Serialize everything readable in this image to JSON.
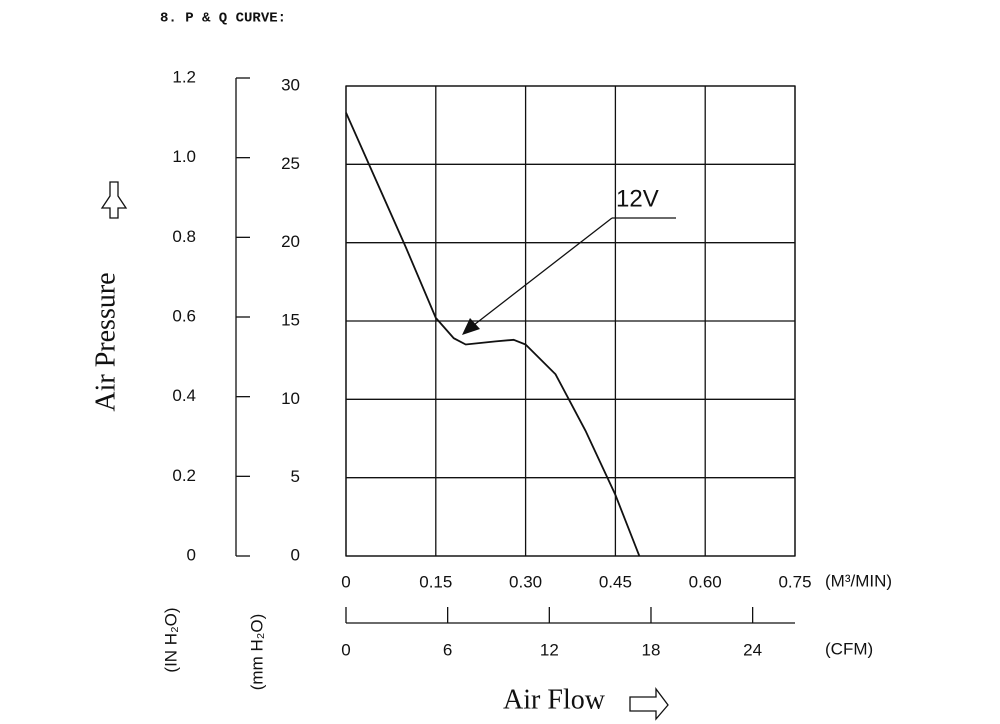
{
  "chart_data": {
    "type": "line",
    "title": "8. P & Q CURVE:",
    "y_label": "Air Pressure",
    "x_label": "Air Flow",
    "x_unit": "(M³/MIN)",
    "x2_unit": "(CFM)",
    "y_unit": "(mm H₂O)",
    "y2_unit": "(IN H₂O)",
    "x": [
      0,
      0.05,
      0.1,
      0.15,
      0.18,
      0.2,
      0.25,
      0.28,
      0.3,
      0.35,
      0.4,
      0.45,
      0.49
    ],
    "series": [
      {
        "name": "12V",
        "color": "#111111",
        "values": [
          28.3,
          24.0,
          19.7,
          15.2,
          13.9,
          13.5,
          13.7,
          13.8,
          13.5,
          11.6,
          8.0,
          3.9,
          0
        ]
      }
    ],
    "xlim": [
      0,
      0.75
    ],
    "xticks": [
      0,
      0.15,
      {
        "value": 0.3,
        "label": "0.30"
      },
      0.45,
      {
        "value": 0.6,
        "label": "0.60"
      },
      0.75
    ],
    "x2lim": [
      0,
      26.5
    ],
    "x2ticks": [
      0,
      6,
      12,
      18,
      24
    ],
    "ylim": [
      0,
      30
    ],
    "yticks": [
      0,
      5,
      10,
      15,
      20,
      25,
      30
    ],
    "y2lim": [
      0,
      1.2
    ],
    "y2ticks": [
      0,
      0.2,
      0.4,
      0.6,
      0.8,
      {
        "value": 1,
        "label": "1.0"
      },
      1.2
    ],
    "grid": true
  }
}
